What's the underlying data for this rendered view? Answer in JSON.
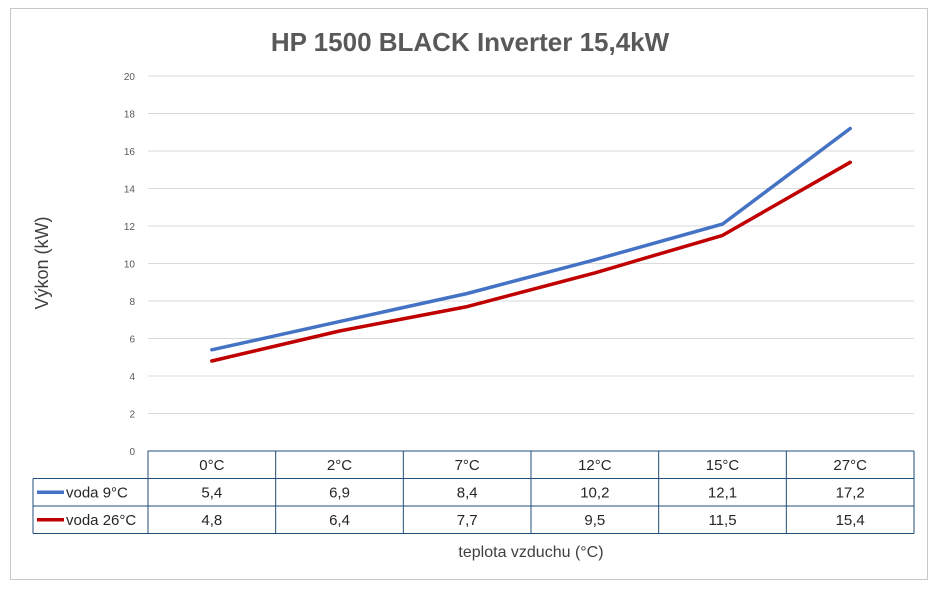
{
  "chart_data": {
    "type": "line",
    "title": "HP 1500 BLACK Inverter 15,4kW",
    "ylabel": "Výkon (kW)",
    "xlabel": "teplota vzduchu (°C)",
    "ylim": [
      0,
      20
    ],
    "yticks": [
      0,
      2,
      4,
      6,
      8,
      10,
      12,
      14,
      16,
      18,
      20
    ],
    "grid": true,
    "legend": "data-table",
    "categories": [
      "0°C",
      "2°C",
      "7°C",
      "12°C",
      "15°C",
      "27°C"
    ],
    "series": [
      {
        "name": "voda 9°C",
        "color": "#4472C4",
        "values": [
          5.4,
          6.9,
          8.4,
          10.2,
          12.1,
          17.2
        ],
        "labels": [
          "5,4",
          "6,9",
          "8,4",
          "10,2",
          "12,1",
          "17,2"
        ]
      },
      {
        "name": "voda 26°C",
        "color": "#C00000",
        "values": [
          4.8,
          6.4,
          7.7,
          9.5,
          11.5,
          15.4
        ],
        "labels": [
          "4,8",
          "6,4",
          "7,7",
          "9,5",
          "11,5",
          "15,4"
        ]
      }
    ]
  }
}
